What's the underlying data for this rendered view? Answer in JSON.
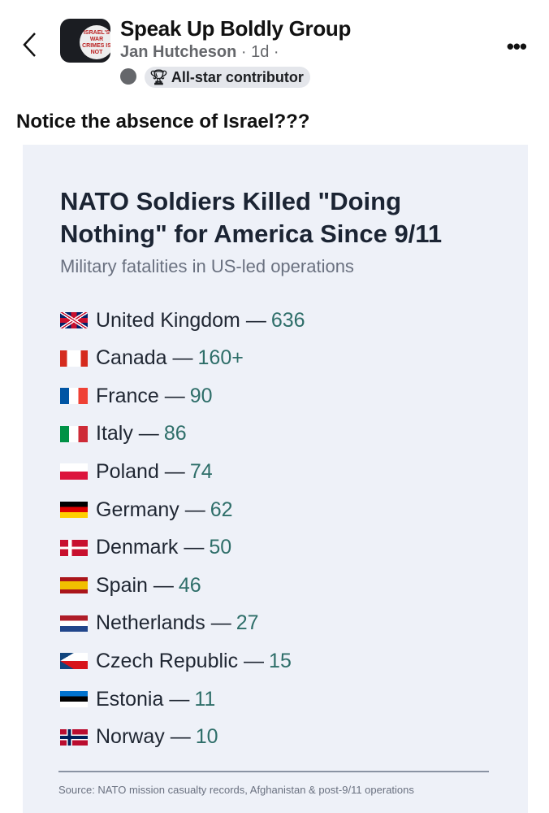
{
  "header": {
    "group_name": "Speak Up Boldly Group",
    "author": "Jan Hutcheson",
    "meta": " · 1d ·",
    "badge": "All-star contributor",
    "avatar_text": "ISRAEL'S WAR CRIMES IS NOT"
  },
  "post": {
    "caption": "Notice the absence of Israel???"
  },
  "infographic": {
    "title": "NATO Soldiers Killed \"Doing Nothing\" for America Since 9/11",
    "subtitle": "Military fatalities in US-led operations",
    "rows": [
      {
        "country": "United Kingdom",
        "value": "636",
        "flag": "uk"
      },
      {
        "country": "Canada",
        "value": "160+",
        "flag": "ca"
      },
      {
        "country": "France",
        "value": "90",
        "flag": "fr"
      },
      {
        "country": "Italy",
        "value": "86",
        "flag": "it"
      },
      {
        "country": "Poland",
        "value": "74",
        "flag": "pl"
      },
      {
        "country": "Germany",
        "value": "62",
        "flag": "de"
      },
      {
        "country": "Denmark",
        "value": "50",
        "flag": "dk"
      },
      {
        "country": "Spain",
        "value": "46",
        "flag": "es"
      },
      {
        "country": "Netherlands",
        "value": "27",
        "flag": "nl"
      },
      {
        "country": "Czech Republic",
        "value": "15",
        "flag": "cz"
      },
      {
        "country": "Estonia",
        "value": "11",
        "flag": "ee"
      },
      {
        "country": "Norway",
        "value": "10",
        "flag": "no"
      }
    ],
    "source": "Source: NATO mission casualty records, Afghanistan & post-9/11 operations"
  }
}
